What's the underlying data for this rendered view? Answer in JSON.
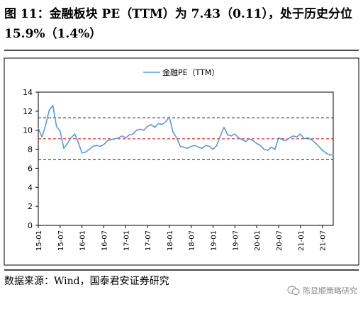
{
  "title": "图 11：金融板块 PE（TTM）为 7.43（0.11），处于历史分位 15.9%（1.4%）",
  "source": "数据来源：Wind，国泰君安证券研究",
  "watermark": "陈显顺策略研究",
  "colors": {
    "series": "#5b9bd5",
    "mean": "#e02020",
    "band": "#3b4a6b",
    "frame": "#000000"
  },
  "chart_data": {
    "type": "line",
    "title": "",
    "xlabel": "",
    "ylabel": "",
    "ylim": [
      0,
      14
    ],
    "yticks": [
      0,
      2,
      4,
      6,
      8,
      10,
      12,
      14
    ],
    "xlim": [
      0,
      81
    ],
    "x_tick_labels": [
      "15-01",
      "15-07",
      "16-01",
      "16-07",
      "17-01",
      "17-07",
      "18-01",
      "18-07",
      "19-01",
      "19-07",
      "20-01",
      "20-07",
      "21-01",
      "21-07"
    ],
    "x_tick_positions": [
      0,
      6,
      12,
      18,
      24,
      30,
      36,
      42,
      48,
      54,
      60,
      66,
      72,
      78
    ],
    "grid": false,
    "legend_position": "top-center",
    "series": [
      {
        "name": "金融PE（TTM）",
        "x": [
          0,
          1,
          2,
          3,
          4,
          5,
          6,
          7,
          8,
          9,
          10,
          11,
          12,
          13,
          14,
          15,
          16,
          17,
          18,
          19,
          20,
          21,
          22,
          23,
          24,
          25,
          26,
          27,
          28,
          29,
          30,
          31,
          32,
          33,
          34,
          35,
          36,
          37,
          38,
          39,
          40,
          41,
          42,
          43,
          44,
          45,
          46,
          47,
          48,
          49,
          50,
          51,
          52,
          53,
          54,
          55,
          56,
          57,
          58,
          59,
          60,
          61,
          62,
          63,
          64,
          65,
          66,
          67,
          68,
          69,
          70,
          71,
          72,
          73,
          74,
          75,
          76,
          77,
          78,
          79,
          80,
          81
        ],
        "y": [
          10.2,
          9.3,
          10.5,
          12.1,
          12.6,
          10.4,
          9.9,
          8.1,
          8.6,
          9.2,
          9.6,
          8.7,
          7.6,
          7.7,
          8.0,
          8.3,
          8.4,
          8.3,
          8.5,
          8.9,
          9.0,
          9.1,
          9.2,
          9.4,
          9.2,
          9.5,
          9.6,
          10.0,
          10.1,
          10.0,
          10.4,
          10.6,
          10.3,
          10.7,
          10.6,
          10.9,
          11.4,
          9.8,
          9.2,
          8.3,
          8.2,
          8.1,
          8.3,
          8.4,
          8.2,
          8.1,
          8.4,
          8.3,
          8.0,
          8.4,
          9.4,
          10.3,
          9.5,
          9.4,
          9.6,
          9.2,
          9.0,
          8.8,
          9.1,
          8.9,
          8.6,
          8.4,
          8.0,
          7.9,
          8.2,
          8.0,
          9.2,
          9.0,
          8.9,
          9.2,
          9.4,
          9.3,
          9.6,
          9.1,
          9.2,
          9.0,
          8.7,
          8.3,
          7.9,
          7.6,
          7.4,
          7.43
        ]
      }
    ],
    "reference_lines": [
      {
        "name": "mean",
        "value": 9.1,
        "style": "dashed",
        "color": "#e02020"
      },
      {
        "name": "upper",
        "value": 11.3,
        "style": "dashed",
        "color": "#3b4a6b"
      },
      {
        "name": "lower",
        "value": 6.9,
        "style": "dashed",
        "color": "#3b4a6b"
      }
    ]
  }
}
